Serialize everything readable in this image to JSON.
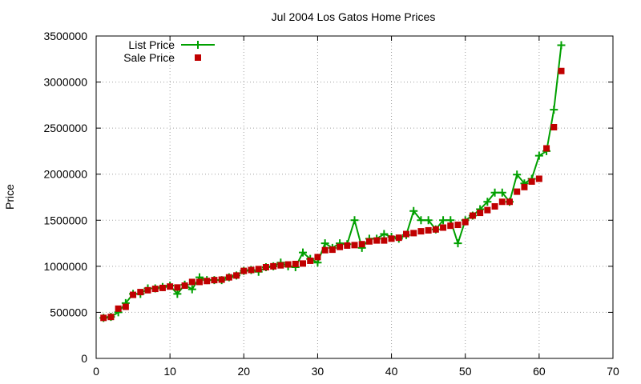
{
  "chart_data": {
    "type": "line",
    "title": "Jul 2004 Los Gatos Home Prices",
    "xlabel": "",
    "ylabel": "Price",
    "xlim": [
      0,
      70
    ],
    "ylim": [
      0,
      3500000
    ],
    "xticks": [
      0,
      10,
      20,
      30,
      40,
      50,
      60,
      70
    ],
    "yticks": [
      0,
      500000,
      1000000,
      1500000,
      2000000,
      2500000,
      3000000,
      3500000
    ],
    "grid": true,
    "legend_position": "top-left",
    "series": [
      {
        "name": "List Price",
        "style": "line-plus",
        "color": "#00a000",
        "x": [
          1,
          2,
          3,
          4,
          5,
          6,
          7,
          8,
          9,
          10,
          11,
          12,
          13,
          14,
          15,
          16,
          17,
          18,
          19,
          20,
          21,
          22,
          23,
          24,
          25,
          26,
          27,
          28,
          29,
          30,
          31,
          32,
          33,
          34,
          35,
          36,
          37,
          38,
          39,
          40,
          41,
          42,
          43,
          44,
          45,
          46,
          47,
          48,
          49,
          50,
          51,
          52,
          53,
          54,
          55,
          56,
          57,
          58,
          59,
          60,
          61,
          62,
          63
        ],
        "y": [
          440000,
          450000,
          500000,
          600000,
          700000,
          700000,
          760000,
          760000,
          775000,
          790000,
          700000,
          800000,
          750000,
          880000,
          850000,
          850000,
          850000,
          880000,
          900000,
          950000,
          960000,
          940000,
          990000,
          1000000,
          1040000,
          1000000,
          990000,
          1150000,
          1080000,
          1040000,
          1250000,
          1200000,
          1250000,
          1240000,
          1500000,
          1200000,
          1300000,
          1300000,
          1350000,
          1320000,
          1300000,
          1340000,
          1600000,
          1500000,
          1500000,
          1400000,
          1500000,
          1500000,
          1250000,
          1500000,
          1550000,
          1620000,
          1700000,
          1800000,
          1800000,
          1700000,
          1995000,
          1900000,
          1950000,
          2200000,
          2250000,
          2700000,
          3400000
        ]
      },
      {
        "name": "Sale Price",
        "style": "square",
        "color": "#c00000",
        "x": [
          1,
          2,
          3,
          4,
          5,
          6,
          7,
          8,
          9,
          10,
          11,
          12,
          13,
          14,
          15,
          16,
          17,
          18,
          19,
          20,
          21,
          22,
          23,
          24,
          25,
          26,
          27,
          28,
          29,
          30,
          31,
          32,
          33,
          34,
          35,
          36,
          37,
          38,
          39,
          40,
          41,
          42,
          43,
          44,
          45,
          46,
          47,
          48,
          49,
          50,
          51,
          52,
          53,
          54,
          55,
          56,
          57,
          58,
          59,
          60,
          61,
          62,
          63
        ],
        "y": [
          440000,
          450000,
          540000,
          560000,
          690000,
          720000,
          740000,
          755000,
          765000,
          780000,
          770000,
          790000,
          830000,
          830000,
          840000,
          850000,
          855000,
          880000,
          900000,
          950000,
          960000,
          970000,
          990000,
          1000000,
          1010000,
          1020000,
          1025000,
          1030000,
          1060000,
          1100000,
          1175000,
          1180000,
          1210000,
          1225000,
          1230000,
          1240000,
          1270000,
          1280000,
          1280000,
          1300000,
          1310000,
          1350000,
          1360000,
          1380000,
          1390000,
          1400000,
          1420000,
          1440000,
          1450000,
          1480000,
          1550000,
          1580000,
          1610000,
          1650000,
          1700000,
          1700000,
          1810000,
          1860000,
          1920000,
          1950000,
          2280000,
          2510000,
          3120000
        ]
      }
    ]
  }
}
